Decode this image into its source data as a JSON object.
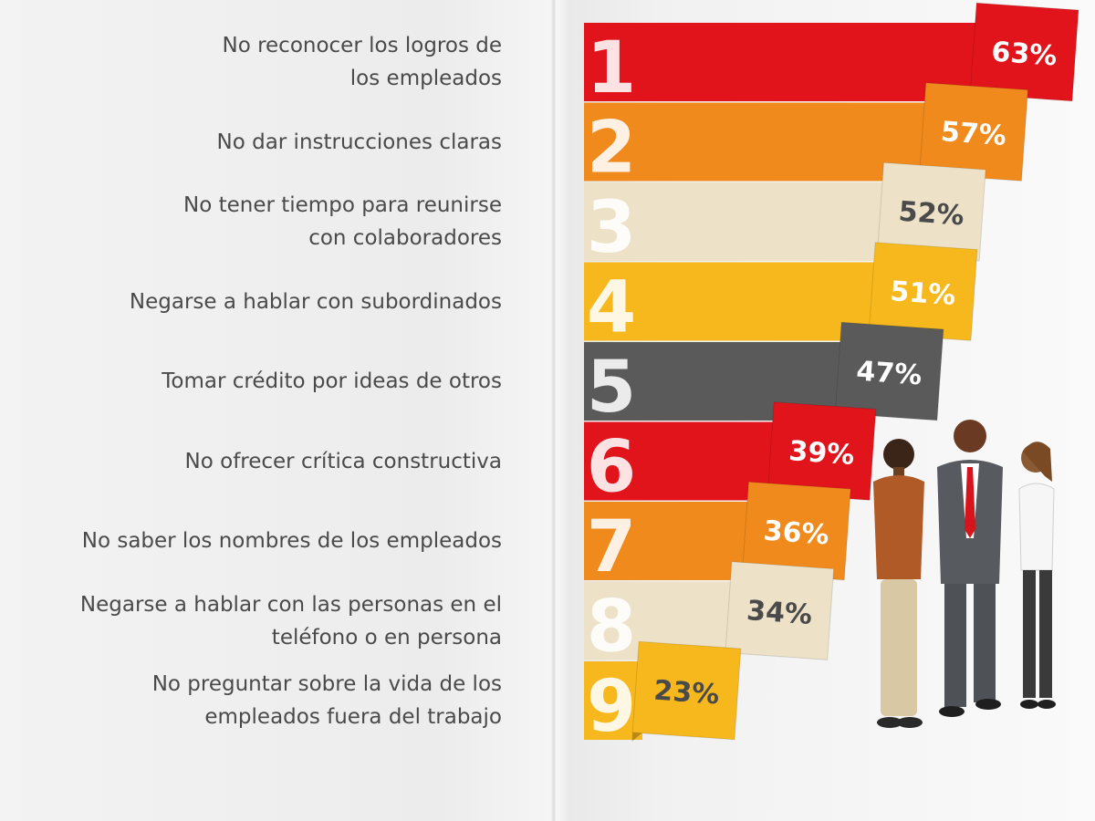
{
  "chart_data": {
    "type": "bar",
    "orientation": "horizontal",
    "categories": [
      "1",
      "2",
      "3",
      "4",
      "5",
      "6",
      "7",
      "8",
      "9"
    ],
    "labels": [
      "No reconocer los logros de\nlos empleados",
      "No dar instrucciones claras",
      "No tener tiempo para reunirse\ncon colaboradores",
      "Negarse a hablar con subordinados",
      "Tomar crédito por ideas de otros",
      "No ofrecer crítica constructiva",
      "No saber los nombres de los empleados",
      "Negarse a hablar con las personas en el\nteléfono o en persona",
      "No preguntar sobre la vida de los\nempleados fuera del trabajo"
    ],
    "values": [
      63,
      57,
      52,
      51,
      47,
      39,
      36,
      34,
      23
    ],
    "value_labels": [
      "63%",
      "57%",
      "52%",
      "51%",
      "47%",
      "39%",
      "36%",
      "34%",
      "23%"
    ],
    "bar_colors": [
      "#e1141c",
      "#f08a1c",
      "#ede2c8",
      "#f6b81c",
      "#5a5a5a",
      "#e1141c",
      "#f08a1c",
      "#ede2c8",
      "#f6b81c"
    ],
    "tag_text_colors": [
      "#ffffff",
      "#ffffff",
      "#4a4a4a",
      "#ffffff",
      "#ffffff",
      "#ffffff",
      "#ffffff",
      "#4a4a4a",
      "#4a4a4a"
    ],
    "grid": false,
    "legend": "none",
    "xlim": [
      0,
      63
    ]
  }
}
